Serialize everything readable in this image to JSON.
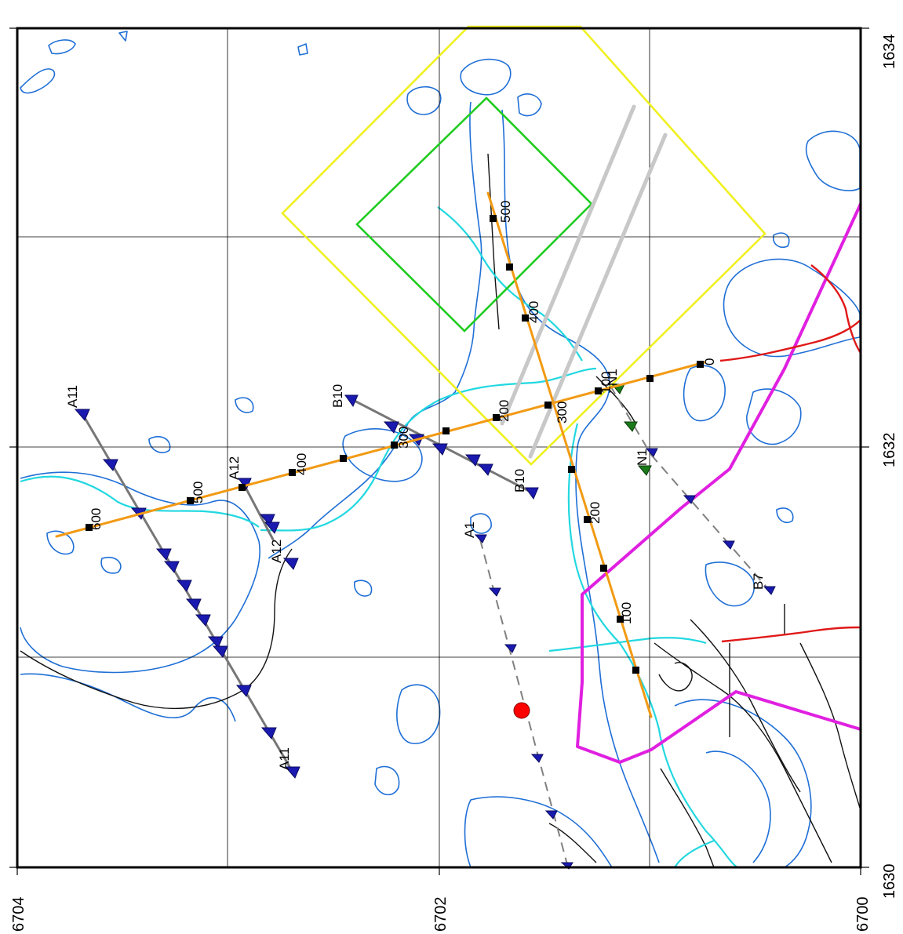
{
  "map": {
    "axis_labels": {
      "bottom": [
        "6704",
        "6702",
        "6700"
      ],
      "right": [
        "1634",
        "1632",
        "1630"
      ]
    },
    "line_labels": {
      "a11_start": "A11",
      "a11_end": "A11",
      "a12_start": "A12",
      "a12_end": "A12",
      "b10_start": "B10",
      "b10_end": "B10",
      "a1": "A1",
      "n1_start": "N1",
      "n1_mid": "N1",
      "b7": "B7"
    },
    "chainage_labels": {
      "h_600": "600",
      "h_500": "500",
      "h_400": "400",
      "h_300": "300",
      "h_200": "200",
      "h_100": "100",
      "h_0": "0",
      "v_500": "500",
      "v_400": "400",
      "v_300": "300",
      "v_200": "200",
      "v_100": "100"
    },
    "colors": {
      "water": "#1f6fd6",
      "river": "#22d8e0",
      "road": "#111111",
      "grid": "#000000",
      "survey_line": "#f29a14",
      "magenta_line": "#e020e0",
      "red_line": "#e01818",
      "outer_zone": "#f0f020",
      "inner_zone": "#20cc20",
      "gray_band": "#c8c8c8",
      "profile_line": "#777777",
      "station_marker": "#1a1ab0",
      "green_marker": "#1a7a1a",
      "point_marker": "#ff0000"
    }
  }
}
